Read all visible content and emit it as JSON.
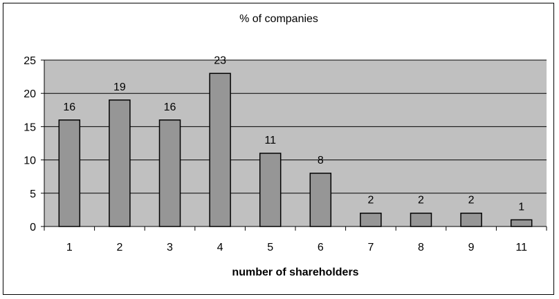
{
  "chart_data": {
    "type": "bar",
    "title": "% of companies",
    "xlabel": "number of shareholders",
    "ylabel": "",
    "categories": [
      "1",
      "2",
      "3",
      "4",
      "5",
      "6",
      "7",
      "8",
      "9",
      "11"
    ],
    "values": [
      16,
      19,
      16,
      23,
      11,
      8,
      2,
      2,
      2,
      1
    ],
    "data_labels": [
      "16",
      "19",
      "16",
      "23",
      "11",
      "8",
      "2",
      "2",
      "2",
      "1"
    ],
    "ylim": [
      0,
      25
    ],
    "yticks": [
      0,
      5,
      10,
      15,
      20,
      25
    ],
    "ytick_labels": [
      "0",
      "5",
      "10",
      "15",
      "20",
      "25"
    ],
    "grid": true,
    "legend": "none",
    "colors": {
      "plot_background": "#c0c0c0",
      "bar_fill": "#969696",
      "bar_stroke": "#000000",
      "gridline": "#000000"
    }
  }
}
